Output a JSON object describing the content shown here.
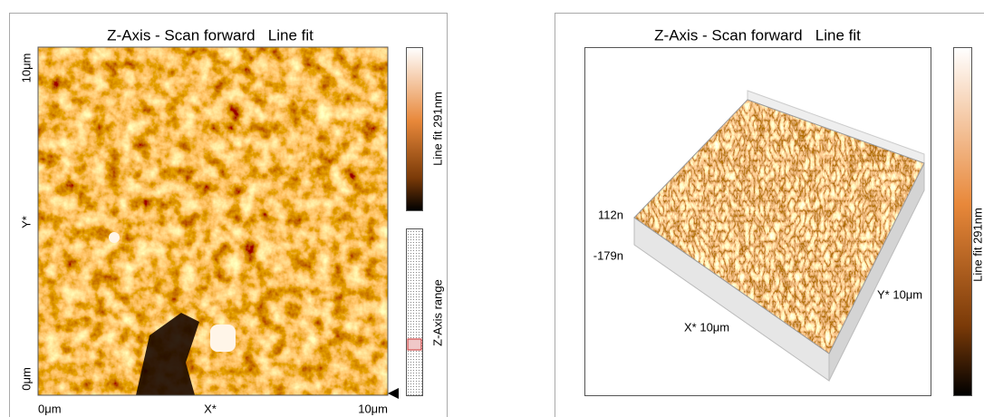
{
  "left_panel": {
    "title": "Z-Axis - Scan forward   Line fit",
    "y_axis": {
      "top": "10μm",
      "middle": "Y*",
      "bottom": "0μm"
    },
    "x_axis": {
      "left": "0μm",
      "middle": "X*",
      "right": "10μm"
    },
    "colorbar_label": "Line fit 291nm",
    "range_label": "Z-Axis range"
  },
  "right_panel": {
    "title": "Z-Axis - Scan forward   Line fit",
    "z_max": "112n",
    "z_min": "-179n",
    "x_label": "X* 10μm",
    "y_label": "Y* 10μm",
    "colorbar_label": "Line fit 291nm"
  }
}
